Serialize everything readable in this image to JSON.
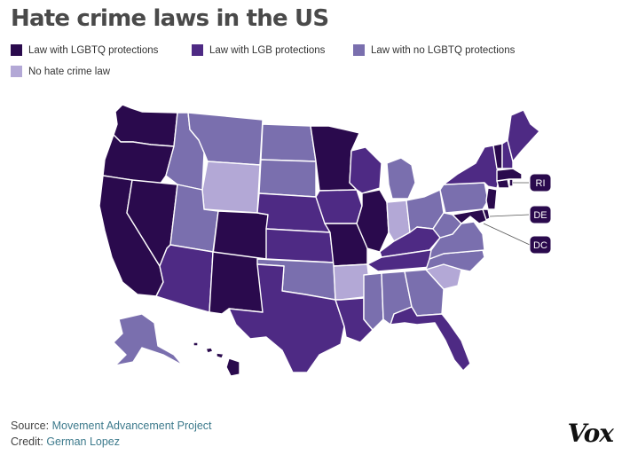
{
  "title": "Hate crime laws in the US",
  "colors": {
    "lgbtq": "#2a0a4d",
    "lgb": "#4e2a84",
    "no_lgbtq": "#7a6fae",
    "none": "#b3a8d6",
    "border": "#ffffff"
  },
  "legend": [
    {
      "key": "lgbtq",
      "label": "Law with LGBTQ protections"
    },
    {
      "key": "lgb",
      "label": "Law with LGB protections"
    },
    {
      "key": "no_lgbtq",
      "label": "Law with no LGBTQ protections"
    },
    {
      "key": "none",
      "label": "No hate crime law"
    }
  ],
  "callouts": [
    "RI",
    "DE",
    "DC"
  ],
  "source": {
    "prefix": "Source:",
    "name": "Movement Advancement Project"
  },
  "credit": {
    "prefix": "Credit:",
    "name": "German Lopez"
  },
  "brand": "Vox",
  "states": {
    "WA": "lgbtq",
    "OR": "lgbtq",
    "CA": "lgbtq",
    "NV": "lgbtq",
    "CO": "lgbtq",
    "NM": "lgbtq",
    "MN": "lgbtq",
    "IL": "lgbtq",
    "MO": "lgbtq",
    "HI": "lgbtq",
    "VT": "lgbtq",
    "MA": "lgbtq",
    "CT": "lgbtq",
    "NJ": "lgbtq",
    "MD": "lgbtq",
    "DE": "lgbtq",
    "RI": "lgbtq",
    "DC": "lgbtq",
    "AZ": "lgb",
    "TX": "lgb",
    "KS": "lgb",
    "NE": "lgb",
    "IA": "lgb",
    "WI": "lgb",
    "LA": "lgb",
    "FL": "lgb",
    "KY": "lgb",
    "TN": "lgb",
    "NY": "lgb",
    "NH": "lgb",
    "ME": "lgb",
    "MT": "no_lgbtq",
    "ID": "no_lgbtq",
    "UT": "no_lgbtq",
    "ND": "no_lgbtq",
    "SD": "no_lgbtq",
    "OK": "no_lgbtq",
    "MS": "no_lgbtq",
    "AL": "no_lgbtq",
    "GA": "no_lgbtq",
    "NC": "no_lgbtq",
    "VA": "no_lgbtq",
    "WV": "no_lgbtq",
    "OH": "no_lgbtq",
    "MI": "no_lgbtq",
    "PA": "no_lgbtq",
    "AK": "no_lgbtq",
    "WY": "none",
    "AR": "none",
    "SC": "none",
    "IN": "none"
  }
}
